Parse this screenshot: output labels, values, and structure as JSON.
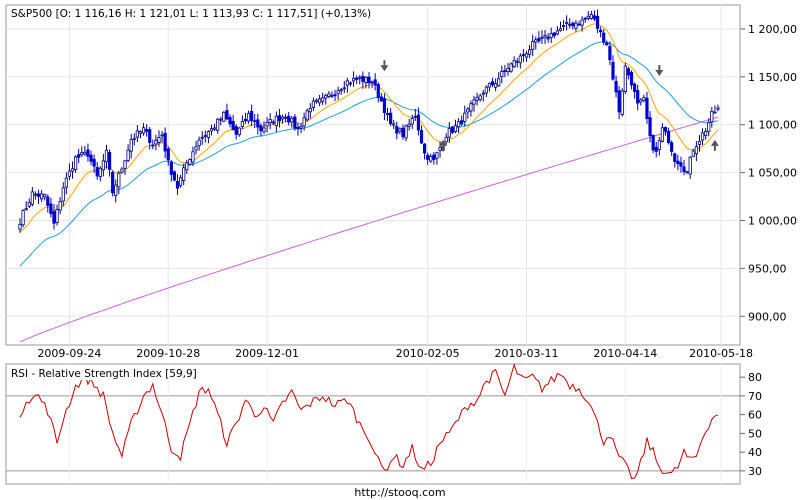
{
  "footer": {
    "url": "http://stooq.com"
  },
  "chart_data": [
    {
      "type": "candlestick",
      "title": "S&P500 [O: 1 116,16  H: 1 121,01  L: 1 113,93  C: 1 117,51] (+0,13%)",
      "ylim": [
        870,
        1225
      ],
      "y_ticks": [
        900,
        950,
        1000,
        1050,
        1100,
        1150,
        1200
      ],
      "y_tick_labels": [
        "900,00",
        "950,00",
        "1 000,00",
        "1 050,00",
        "1 100,00",
        "1 150,00",
        "1 200,00"
      ],
      "x_tick_labels": [
        "2009-09-24",
        "2009-10-28",
        "2009-12-01",
        "2010-02-05",
        "2010-03-11",
        "2010-04-14",
        "2010-05-18"
      ],
      "grid": true,
      "colors": {
        "up": "#000080",
        "down": "#0000cc",
        "ma_short": "#ffa500",
        "ma_mid": "#1fa0d8",
        "ma_long": "#d060e0",
        "arrow": "#555555"
      },
      "close_anchors": [
        [
          0,
          1000
        ],
        [
          4,
          1028
        ],
        [
          8,
          1025
        ],
        [
          11,
          996
        ],
        [
          14,
          1035
        ],
        [
          18,
          1065
        ],
        [
          22,
          1070
        ],
        [
          25,
          1045
        ],
        [
          28,
          1070
        ],
        [
          30,
          1030
        ],
        [
          33,
          1055
        ],
        [
          36,
          1085
        ],
        [
          40,
          1095
        ],
        [
          43,
          1080
        ],
        [
          46,
          1090
        ],
        [
          48,
          1060
        ],
        [
          51,
          1035
        ],
        [
          54,
          1060
        ],
        [
          58,
          1085
        ],
        [
          62,
          1095
        ],
        [
          66,
          1110
        ],
        [
          70,
          1090
        ],
        [
          74,
          1110
        ],
        [
          78,
          1095
        ],
        [
          82,
          1105
        ],
        [
          86,
          1110
        ],
        [
          90,
          1095
        ],
        [
          94,
          1120
        ],
        [
          98,
          1125
        ],
        [
          102,
          1135
        ],
        [
          106,
          1145
        ],
        [
          110,
          1148
        ],
        [
          114,
          1145
        ],
        [
          117,
          1125
        ],
        [
          120,
          1100
        ],
        [
          124,
          1090
        ],
        [
          128,
          1110
        ],
        [
          131,
          1070
        ],
        [
          134,
          1062
        ],
        [
          138,
          1090
        ],
        [
          142,
          1100
        ],
        [
          146,
          1118
        ],
        [
          150,
          1135
        ],
        [
          154,
          1145
        ],
        [
          158,
          1160
        ],
        [
          162,
          1170
        ],
        [
          166,
          1183
        ],
        [
          170,
          1190
        ],
        [
          174,
          1198
        ],
        [
          178,
          1205
        ],
        [
          182,
          1208
        ],
        [
          185,
          1215
        ],
        [
          188,
          1195
        ],
        [
          190,
          1185
        ],
        [
          192,
          1150
        ],
        [
          194,
          1115
        ],
        [
          196,
          1160
        ],
        [
          198,
          1145
        ],
        [
          200,
          1120
        ],
        [
          202,
          1125
        ],
        [
          204,
          1085
        ],
        [
          206,
          1070
        ],
        [
          208,
          1095
        ],
        [
          210,
          1085
        ],
        [
          212,
          1065
        ],
        [
          214,
          1060
        ],
        [
          216,
          1050
        ],
        [
          218,
          1075
        ],
        [
          220,
          1085
        ],
        [
          222,
          1095
        ],
        [
          224,
          1110
        ],
        [
          226,
          1117.51
        ]
      ],
      "arrows": [
        {
          "index": 118,
          "value": 1160,
          "direction": "down"
        },
        {
          "index": 137,
          "value": 1080,
          "direction": "up"
        },
        {
          "index": 207,
          "value": 1155,
          "direction": "down"
        },
        {
          "index": 225,
          "value": 1080,
          "direction": "up"
        }
      ]
    },
    {
      "type": "line",
      "title": "RSI - Relative Strength Index [59,9]",
      "ylim": [
        23,
        87
      ],
      "y_ticks": [
        30,
        40,
        50,
        60,
        70,
        80
      ],
      "y_tick_labels": [
        "30",
        "40",
        "50",
        "60",
        "70",
        "80"
      ],
      "reference_lines": [
        30,
        70
      ],
      "color": "#cc0000",
      "rsi_anchors": [
        [
          0,
          60
        ],
        [
          2,
          68
        ],
        [
          6,
          70
        ],
        [
          9,
          62
        ],
        [
          12,
          45
        ],
        [
          14,
          58
        ],
        [
          18,
          75
        ],
        [
          21,
          80
        ],
        [
          24,
          76
        ],
        [
          27,
          70
        ],
        [
          30,
          50
        ],
        [
          33,
          38
        ],
        [
          36,
          55
        ],
        [
          40,
          70
        ],
        [
          43,
          76
        ],
        [
          46,
          60
        ],
        [
          49,
          42
        ],
        [
          52,
          38
        ],
        [
          55,
          55
        ],
        [
          58,
          72
        ],
        [
          61,
          74
        ],
        [
          64,
          60
        ],
        [
          67,
          45
        ],
        [
          70,
          55
        ],
        [
          73,
          68
        ],
        [
          76,
          60
        ],
        [
          79,
          64
        ],
        [
          82,
          55
        ],
        [
          85,
          66
        ],
        [
          88,
          72
        ],
        [
          91,
          62
        ],
        [
          94,
          66
        ],
        [
          98,
          70
        ],
        [
          102,
          65
        ],
        [
          106,
          68
        ],
        [
          110,
          55
        ],
        [
          113,
          48
        ],
        [
          116,
          35
        ],
        [
          118,
          30
        ],
        [
          121,
          38
        ],
        [
          124,
          33
        ],
        [
          127,
          42
        ],
        [
          130,
          30
        ],
        [
          133,
          34
        ],
        [
          136,
          45
        ],
        [
          139,
          50
        ],
        [
          142,
          58
        ],
        [
          145,
          65
        ],
        [
          148,
          68
        ],
        [
          151,
          78
        ],
        [
          154,
          82
        ],
        [
          157,
          70
        ],
        [
          160,
          85
        ],
        [
          163,
          78
        ],
        [
          166,
          80
        ],
        [
          169,
          74
        ],
        [
          172,
          78
        ],
        [
          175,
          82
        ],
        [
          178,
          76
        ],
        [
          181,
          74
        ],
        [
          184,
          68
        ],
        [
          187,
          55
        ],
        [
          189,
          46
        ],
        [
          191,
          50
        ],
        [
          193,
          40
        ],
        [
          195,
          35
        ],
        [
          197,
          30
        ],
        [
          199,
          25
        ],
        [
          201,
          34
        ],
        [
          203,
          46
        ],
        [
          205,
          40
        ],
        [
          207,
          32
        ],
        [
          209,
          30
        ],
        [
          211,
          28
        ],
        [
          213,
          32
        ],
        [
          215,
          40
        ],
        [
          217,
          35
        ],
        [
          219,
          38
        ],
        [
          221,
          48
        ],
        [
          223,
          55
        ],
        [
          225,
          60
        ],
        [
          227,
          59.9
        ]
      ]
    }
  ]
}
